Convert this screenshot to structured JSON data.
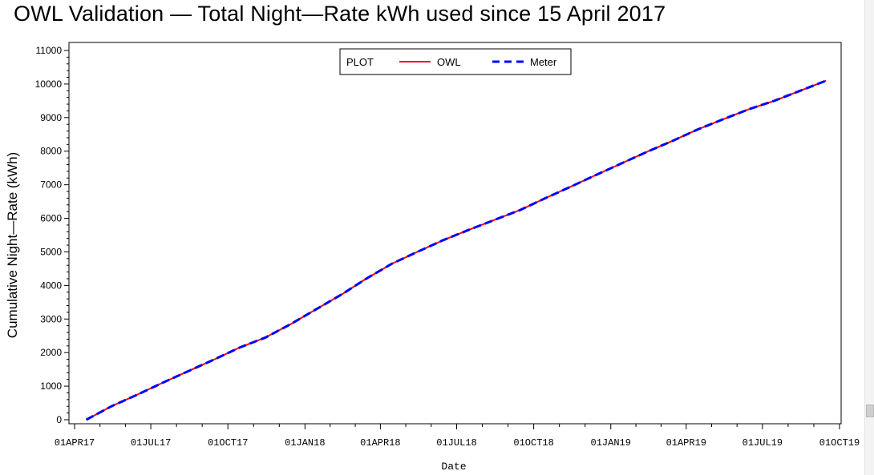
{
  "chart_data": {
    "type": "line",
    "title": "OWL Validation — Total Night—Rate kWh used since 15 April 2017",
    "xlabel": "Date",
    "ylabel": "Cumulative Night—Rate (kWh)",
    "ylim": [
      0,
      11000
    ],
    "xlim": [
      "2017-04-01",
      "2019-10-01"
    ],
    "grid": false,
    "legend": {
      "title": "PLOT",
      "placement": "top-center"
    },
    "x_ticks": [
      {
        "date": "2017-04-01",
        "label": "01APR17"
      },
      {
        "date": "2017-07-01",
        "label": "01JUL17"
      },
      {
        "date": "2017-10-01",
        "label": "01OCT17"
      },
      {
        "date": "2018-01-01",
        "label": "01JAN18"
      },
      {
        "date": "2018-04-01",
        "label": "01APR18"
      },
      {
        "date": "2018-07-01",
        "label": "01JUL18"
      },
      {
        "date": "2018-10-01",
        "label": "01OCT18"
      },
      {
        "date": "2019-01-01",
        "label": "01JAN19"
      },
      {
        "date": "2019-04-01",
        "label": "01APR19"
      },
      {
        "date": "2019-07-01",
        "label": "01JUL19"
      },
      {
        "date": "2019-10-01",
        "label": "01OCT19"
      }
    ],
    "y_ticks": [
      0,
      1000,
      2000,
      3000,
      4000,
      5000,
      6000,
      7000,
      8000,
      9000,
      10000,
      11000
    ],
    "x": [
      "2017-04-15",
      "2017-05-15",
      "2017-06-15",
      "2017-07-15",
      "2017-08-15",
      "2017-09-15",
      "2017-10-15",
      "2017-11-15",
      "2017-12-15",
      "2018-01-15",
      "2018-02-15",
      "2018-03-15",
      "2018-04-15",
      "2018-05-15",
      "2018-06-15",
      "2018-07-15",
      "2018-08-15",
      "2018-09-15",
      "2018-10-15",
      "2018-11-15",
      "2018-12-15",
      "2019-01-15",
      "2019-02-15",
      "2019-03-15",
      "2019-04-15",
      "2019-05-15",
      "2019-06-15",
      "2019-07-15",
      "2019-08-15",
      "2019-09-15"
    ],
    "series": [
      {
        "name": "OWL",
        "color": "#ff0000",
        "style": "solid",
        "values": [
          0,
          400,
          750,
          1100,
          1450,
          1800,
          2150,
          2450,
          2850,
          3300,
          3750,
          4200,
          4650,
          5000,
          5350,
          5650,
          5950,
          6250,
          6600,
          6950,
          7300,
          7650,
          8000,
          8300,
          8650,
          8950,
          9250,
          9500,
          9800,
          10100
        ]
      },
      {
        "name": "Meter",
        "color": "#0000ff",
        "style": "dashed",
        "values": [
          0,
          400,
          750,
          1100,
          1450,
          1800,
          2150,
          2450,
          2850,
          3300,
          3750,
          4200,
          4650,
          5000,
          5350,
          5650,
          5950,
          6250,
          6600,
          6950,
          7300,
          7650,
          8000,
          8300,
          8650,
          8950,
          9250,
          9500,
          9800,
          10100
        ]
      }
    ]
  }
}
